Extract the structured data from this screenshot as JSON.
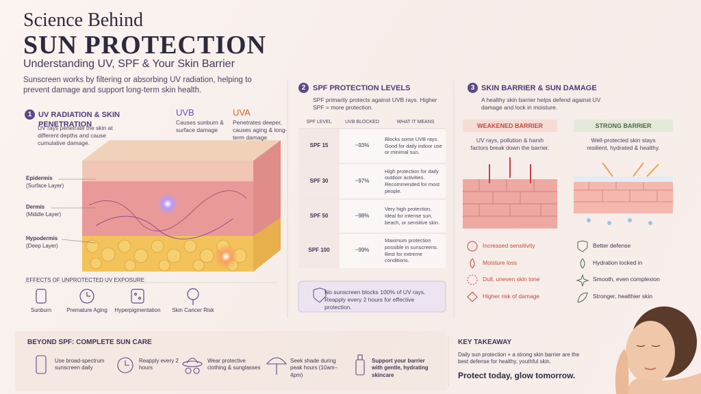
{
  "header": {
    "title_line1": "Science Behind",
    "title_line2": "SUN PROTECTION",
    "subtitle": "Understanding UV, SPF & Your Skin Barrier",
    "intro": "Sunscreen works by filtering or absorbing UV radiation, helping to prevent damage and support long-term skin health."
  },
  "section1": {
    "number": "1",
    "title": "UV RADIATION & SKIN PENETRATION",
    "desc": "UV rays penetrate the skin at different depths and cause cumulative damage.",
    "uvb": {
      "label": "UVB",
      "desc": "Causes sunburn & surface damage"
    },
    "uva": {
      "label": "UVA",
      "desc": "Penetrates deeper, causes aging & long-term damage"
    },
    "layers": [
      {
        "name": "Epidermis",
        "note": "(Surface Layer)"
      },
      {
        "name": "Dermis",
        "note": "(Middle Layer)"
      },
      {
        "name": "Hypodermis",
        "note": "(Deep Layer)"
      }
    ],
    "effects_title": "EFFECTS OF UNPROTECTED UV EXPOSURE",
    "effects": [
      "Sunburn",
      "Premature Aging",
      "Hyperpigmentation",
      "Skin Cancer Risk"
    ]
  },
  "section2": {
    "number": "2",
    "title": "SPF PROTECTION LEVELS",
    "desc": "SPF primarily protects against UVB rays. Higher SPF = more protection.",
    "table": {
      "headers": [
        "SPF LEVEL",
        "UVB BLOCKED",
        "WHAT IT MEANS"
      ],
      "rows": [
        [
          "SPF 15",
          "~93%",
          "Blocks some UVB rays. Good for daily indoor use or minimal sun."
        ],
        [
          "SPF 30",
          "~97%",
          "High protection for daily outdoor activities. Recommended for most people."
        ],
        [
          "SPF 50",
          "~98%",
          "Very high protection. Ideal for intense sun, beach, or sensitive skin."
        ],
        [
          "SPF 100",
          "~99%",
          "Maximum protection possible in sunscreens. Best for extreme conditions."
        ]
      ]
    },
    "note": "No sunscreen blocks 100% of UV rays. Reapply every 2 hours for effective protection."
  },
  "section3": {
    "number": "3",
    "title": "SKIN BARRIER & SUN DAMAGE",
    "desc": "A healthy skin barrier helps defend against UV damage and lock in moisture.",
    "weakened": {
      "title": "WEAKENED BARRIER",
      "desc": "UV rays, pollution & harsh factors break down the barrier.",
      "items": [
        "Increased sensitivity",
        "Moisture loss",
        "Dull, uneven skin tone",
        "Higher risk of damage"
      ]
    },
    "strong": {
      "title": "STRONG BARRIER",
      "desc": "Well-protected skin stays resilient, hydrated & healthy.",
      "items": [
        "Better defense",
        "Hydration locked in",
        "Smooth, even complexion",
        "Stronger, healthier skin"
      ]
    }
  },
  "footer": {
    "care_title": "BEYOND SPF: COMPLETE SUN CARE",
    "care": [
      "Use broad-spectrum sunscreen daily",
      "Reapply every 2 hours",
      "Wear protective clothing & sunglasses",
      "Seek shade during peak hours (10am–4pm)",
      "Support your barrier with gentle, hydrating skincare"
    ],
    "takeaway_title": "KEY TAKEAWAY",
    "takeaway": "Daily sun protection + a strong skin barrier are the best defense for healthy, youthful skin.",
    "slogan": "Protect today, glow tomorrow."
  }
}
